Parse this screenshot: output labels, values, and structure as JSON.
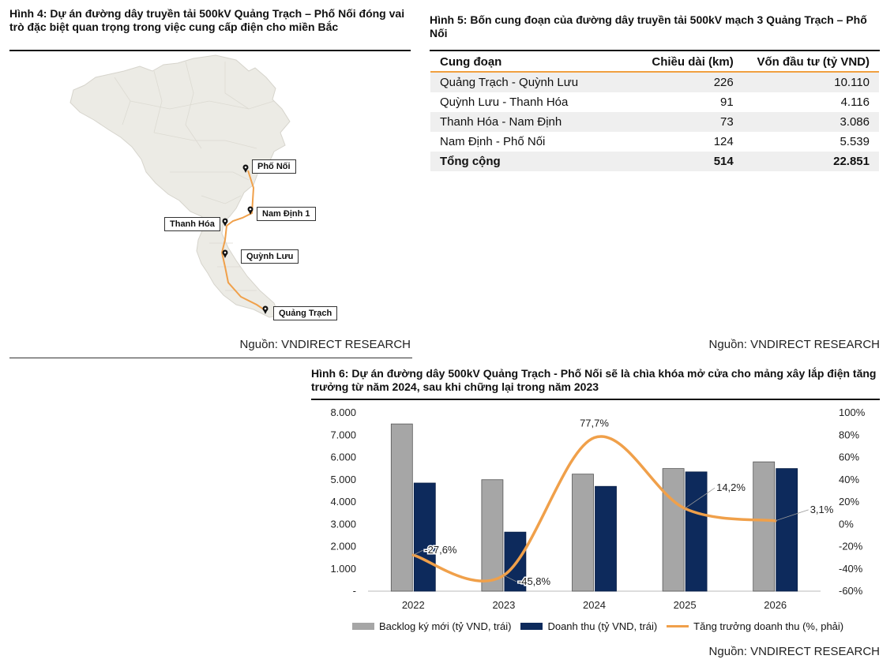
{
  "figure4": {
    "title": "Hình 4: Dự án đường dây truyền tải 500kV Quảng Trạch – Phố Nối đóng vai trò đặc biệt quan trọng trong việc cung cấp điện cho miền Bắc",
    "source": "Nguồn: VNDIRECT RESEARCH",
    "labels": [
      "Phố Nối",
      "Nam Định 1",
      "Thanh Hóa",
      "Quỳnh Lưu",
      "Quảng Trạch"
    ],
    "colors": {
      "land": "#ecebe5",
      "route": "#f0a04a",
      "border": "#d6d4cc"
    },
    "pin_icon": "map-pin-icon"
  },
  "figure5": {
    "title": "Hình 5: Bốn cung đoạn của đường dây truyền tải 500kV mạch 3 Quảng Trạch – Phố Nối",
    "headers": [
      "Cung đoạn",
      "Chiều dài (km)",
      "Vốn đầu tư (tỷ VND)"
    ],
    "rows": [
      [
        "Quảng Trạch - Quỳnh Lưu",
        "226",
        "10.110"
      ],
      [
        "Quỳnh Lưu - Thanh Hóa",
        "91",
        "4.116"
      ],
      [
        "Thanh Hóa - Nam Định",
        "73",
        "3.086"
      ],
      [
        "Nam Định - Phố Nối",
        "124",
        "5.539"
      ]
    ],
    "total": [
      "Tổng cộng",
      "514",
      "22.851"
    ],
    "source": "Nguồn: VNDIRECT RESEARCH"
  },
  "figure6": {
    "title": "Hình 6: Dự án đường dây 500kV Quảng Trạch - Phố Nối sẽ là chìa khóa mở cửa cho mảng xây lắp điện tăng trưởng từ năm 2024, sau khi chững lại trong năm 2023",
    "source": "Nguồn: VNDIRECT RESEARCH",
    "left_ticks": [
      "8.000",
      "7.000",
      "6.000",
      "5.000",
      "4.000",
      "3.000",
      "2.000",
      "1.000",
      "-"
    ],
    "right_ticks": [
      "100%",
      "80%",
      "60%",
      "40%",
      "20%",
      "0%",
      "-20%",
      "-40%",
      "-60%"
    ]
  },
  "chart_data": {
    "type": "bar",
    "title": "Hình 6: Dự án đường dây 500kV Quảng Trạch - Phố Nối sẽ là chìa khóa mở cửa cho mảng xây lắp điện tăng trưởng từ năm 2024, sau khi chững lại trong năm 2023",
    "categories": [
      "2022",
      "2023",
      "2024",
      "2025",
      "2026"
    ],
    "series": [
      {
        "name": "Backlog ký mới (tỷ VND, trái)",
        "type": "bar",
        "axis": "left",
        "color": "#a6a6a6",
        "values": [
          7500,
          5000,
          5250,
          5500,
          5800
        ]
      },
      {
        "name": "Doanh thu (tỷ VND, trái)",
        "type": "bar",
        "axis": "left",
        "color": "#0d2a5c",
        "values": [
          4850,
          2650,
          4700,
          5350,
          5500
        ]
      },
      {
        "name": "Tăng trưởng doanh thu (%, phải)",
        "type": "line",
        "axis": "right",
        "color": "#f0a04a",
        "values": [
          -27.6,
          -45.8,
          77.7,
          14.2,
          3.1
        ],
        "data_labels": [
          "-27,6%",
          "-45,8%",
          "77,7%",
          "14,2%",
          "3,1%"
        ]
      }
    ],
    "ylim_left": [
      0,
      8000
    ],
    "ylim_right": [
      -60,
      100
    ],
    "legend": "bottom",
    "grid": false
  }
}
